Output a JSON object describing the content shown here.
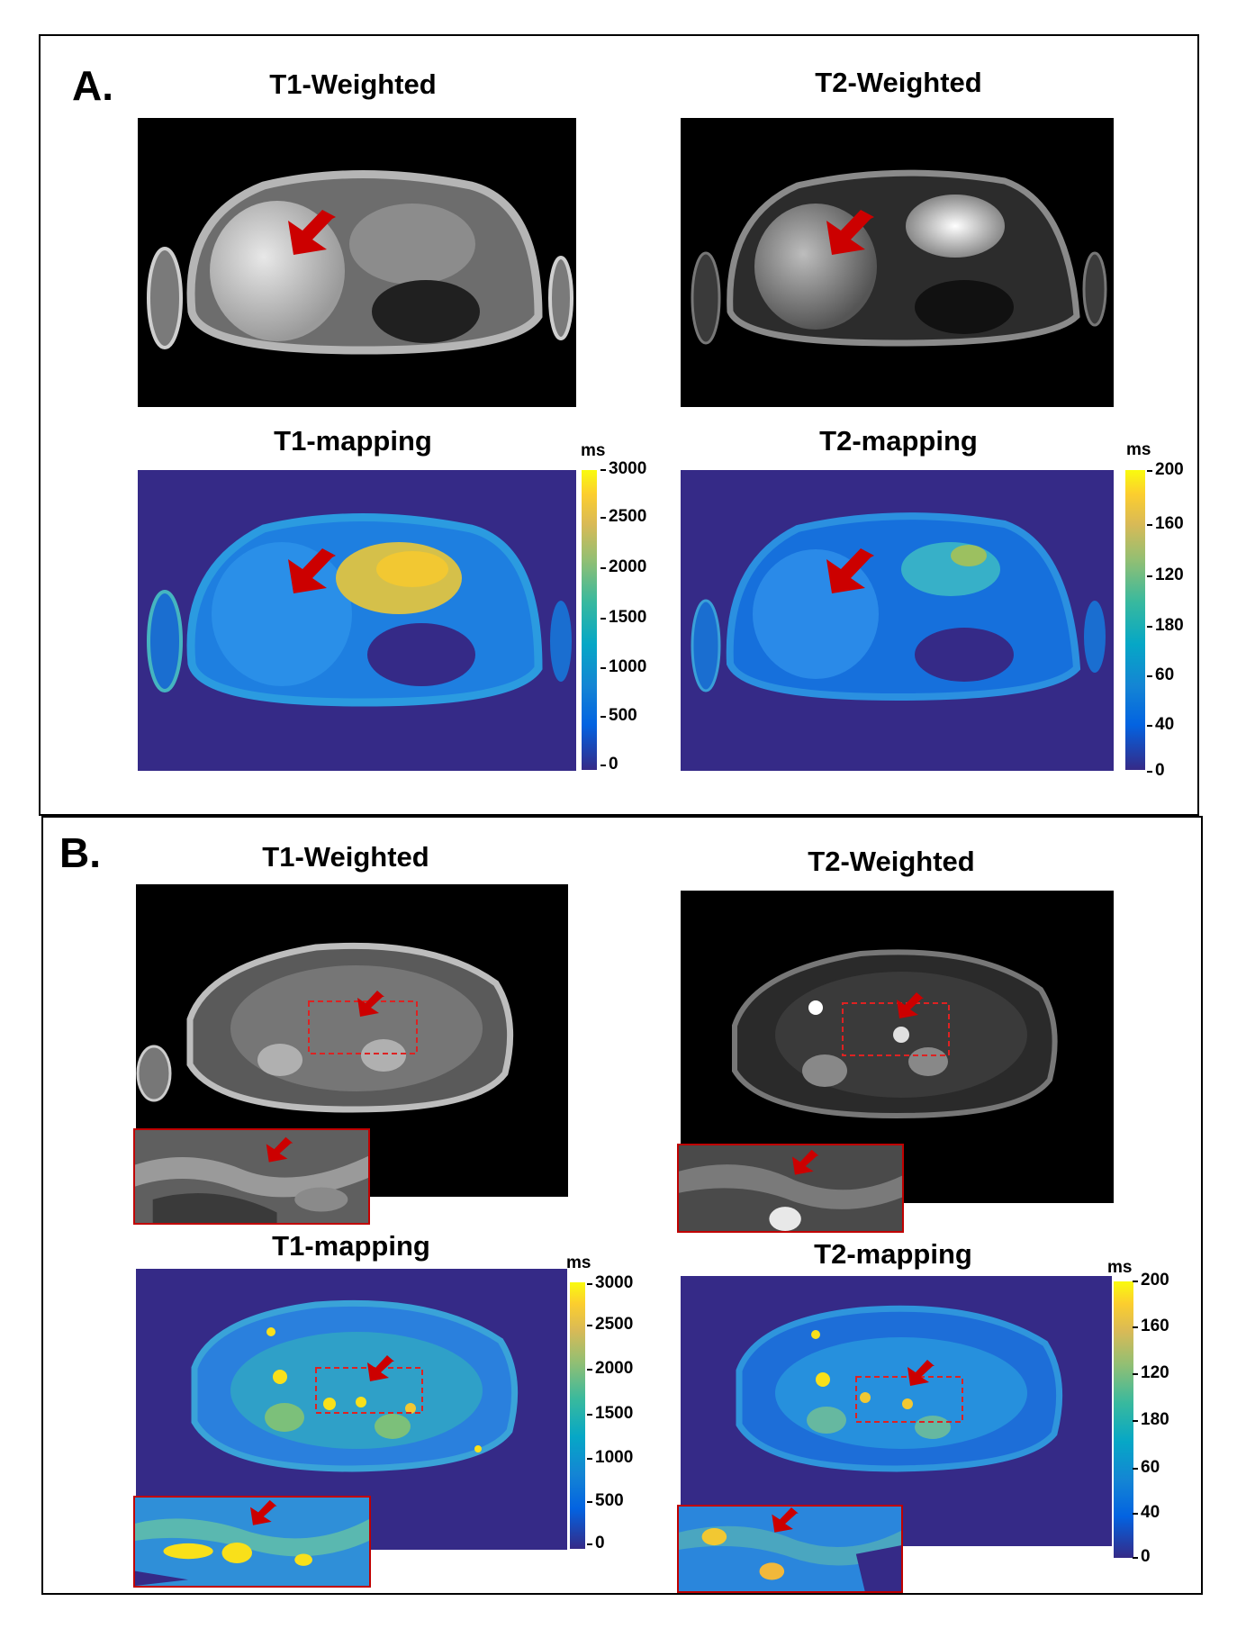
{
  "panel_a": {
    "letter": "A.",
    "titles": {
      "t1_weighted": "T1-Weighted",
      "t2_weighted": "T2-Weighted",
      "t1_mapping": "T1-mapping",
      "t2_mapping": "T2-mapping"
    },
    "t1_colorbar": {
      "unit": "ms",
      "ticks": [
        "3000",
        "2500",
        "2000",
        "1500",
        "1000",
        "500",
        "0"
      ]
    },
    "t2_colorbar": {
      "unit": "ms",
      "ticks": [
        "200",
        "160",
        "120",
        "180",
        "60",
        "40",
        "0"
      ]
    }
  },
  "panel_b": {
    "letter": "B.",
    "titles": {
      "t1_weighted": "T1-Weighted",
      "t2_weighted": "T2-Weighted",
      "t1_mapping": "T1-mapping",
      "t2_mapping": "T2-mapping"
    },
    "t1_colorbar": {
      "unit": "ms",
      "ticks": [
        "3000",
        "2500",
        "2000",
        "1500",
        "1000",
        "500",
        "0"
      ]
    },
    "t2_colorbar": {
      "unit": "ms",
      "ticks": [
        "200",
        "160",
        "120",
        "180",
        "60",
        "40",
        "0"
      ]
    }
  },
  "colors": {
    "background_map": "#352a87",
    "arrow": "#cc0000",
    "roi_box": "#dd2222",
    "inset_border": "#c00000"
  }
}
